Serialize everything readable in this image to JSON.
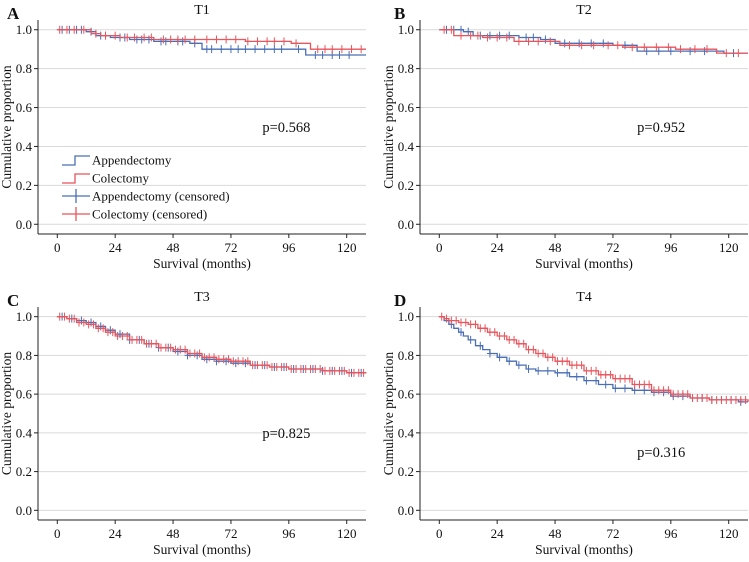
{
  "colors": {
    "appendectomy": "#4a6fb5",
    "colectomy": "#e8555c"
  },
  "legend": {
    "items": [
      {
        "label": "Appendectomy",
        "kind": "line",
        "series": "appendectomy"
      },
      {
        "label": "Colectomy",
        "kind": "line",
        "series": "colectomy"
      },
      {
        "label": "Appendectomy (censored)",
        "kind": "cross",
        "series": "appendectomy"
      },
      {
        "label": "Colectomy (censored)",
        "kind": "cross",
        "series": "colectomy"
      }
    ]
  },
  "chart_data": [
    {
      "type": "line",
      "letter": "A",
      "title": "T1",
      "xlabel": "Survival (months)",
      "ylabel": "Cumulative proportion",
      "xlim": [
        -8,
        128
      ],
      "ylim": [
        -0.05,
        1.05
      ],
      "xticks": [
        0,
        24,
        48,
        72,
        96,
        120
      ],
      "yticks": [
        0.0,
        0.2,
        0.4,
        0.6,
        0.8,
        1.0
      ],
      "ytick_labels": [
        "0.0",
        "0.2",
        "0.4",
        "0.6",
        "0.8",
        "1.0"
      ],
      "annotation": "p=0.568",
      "annotation_pos": [
        95,
        0.5
      ],
      "grid": true,
      "show_legend": true,
      "series": [
        {
          "name": "Appendectomy",
          "key": "appendectomy",
          "steps": [
            [
              0,
              1.0
            ],
            [
              12,
              0.99
            ],
            [
              16,
              0.97
            ],
            [
              22,
              0.96
            ],
            [
              30,
              0.95
            ],
            [
              40,
              0.94
            ],
            [
              55,
              0.93
            ],
            [
              60,
              0.9
            ],
            [
              103,
              0.87
            ],
            [
              128,
              0.87
            ]
          ],
          "censored": [
            2,
            5,
            8,
            10,
            14,
            18,
            20,
            26,
            28,
            33,
            35,
            38,
            43,
            45,
            50,
            52,
            57,
            62,
            64,
            68,
            72,
            75,
            78,
            82,
            86,
            90,
            93,
            100,
            107,
            110,
            114,
            117,
            121
          ]
        },
        {
          "name": "Colectomy",
          "key": "colectomy",
          "steps": [
            [
              0,
              1.0
            ],
            [
              14,
              0.98
            ],
            [
              18,
              0.97
            ],
            [
              26,
              0.96
            ],
            [
              40,
              0.95
            ],
            [
              60,
              0.95
            ],
            [
              78,
              0.94
            ],
            [
              97,
              0.93
            ],
            [
              105,
              0.9
            ],
            [
              128,
              0.9
            ]
          ],
          "censored": [
            1,
            4,
            7,
            11,
            16,
            20,
            24,
            29,
            32,
            36,
            39,
            44,
            47,
            50,
            53,
            57,
            62,
            66,
            70,
            74,
            79,
            83,
            87,
            90,
            94,
            99,
            108,
            111,
            114,
            118,
            122,
            126
          ]
        }
      ]
    },
    {
      "type": "line",
      "letter": "B",
      "title": "T2",
      "xlabel": "Survival (months)",
      "ylabel": "Cumulative proportion",
      "xlim": [
        -8,
        128
      ],
      "ylim": [
        -0.05,
        1.05
      ],
      "xticks": [
        0,
        24,
        48,
        72,
        96,
        120
      ],
      "yticks": [
        0.0,
        0.2,
        0.4,
        0.6,
        0.8,
        1.0
      ],
      "ytick_labels": [
        "0.0",
        "0.2",
        "0.4",
        "0.6",
        "0.8",
        "1.0"
      ],
      "annotation": "p=0.952",
      "annotation_pos": [
        92,
        0.5
      ],
      "grid": true,
      "show_legend": false,
      "series": [
        {
          "name": "Appendectomy",
          "key": "appendectomy",
          "steps": [
            [
              0,
              1.0
            ],
            [
              10,
              0.99
            ],
            [
              14,
              0.97
            ],
            [
              33,
              0.96
            ],
            [
              42,
              0.95
            ],
            [
              48,
              0.93
            ],
            [
              72,
              0.92
            ],
            [
              82,
              0.89
            ],
            [
              98,
              0.89
            ],
            [
              118,
              0.88
            ],
            [
              128,
              0.88
            ]
          ],
          "censored": [
            3,
            6,
            9,
            12,
            17,
            21,
            25,
            29,
            36,
            39,
            44,
            52,
            58,
            63,
            68,
            77,
            86,
            91,
            96,
            104,
            110,
            122
          ]
        },
        {
          "name": "Colectomy",
          "key": "colectomy",
          "steps": [
            [
              0,
              1.0
            ],
            [
              6,
              0.97
            ],
            [
              18,
              0.96
            ],
            [
              31,
              0.94
            ],
            [
              50,
              0.92
            ],
            [
              76,
              0.91
            ],
            [
              98,
              0.9
            ],
            [
              115,
              0.88
            ],
            [
              128,
              0.88
            ]
          ],
          "censored": [
            2,
            5,
            9,
            13,
            16,
            20,
            24,
            28,
            33,
            37,
            41,
            46,
            54,
            59,
            64,
            70,
            74,
            80,
            85,
            90,
            95,
            100,
            106,
            111,
            119,
            124
          ]
        }
      ]
    },
    {
      "type": "line",
      "letter": "C",
      "title": "T3",
      "xlabel": "Survival (months)",
      "ylabel": "Cumulative proportion",
      "xlim": [
        -8,
        128
      ],
      "ylim": [
        -0.05,
        1.05
      ],
      "xticks": [
        0,
        24,
        48,
        72,
        96,
        120
      ],
      "yticks": [
        0.0,
        0.2,
        0.4,
        0.6,
        0.8,
        1.0
      ],
      "ytick_labels": [
        "0.0",
        "0.2",
        "0.4",
        "0.6",
        "0.8",
        "1.0"
      ],
      "annotation": "p=0.825",
      "annotation_pos": [
        95,
        0.4
      ],
      "grid": true,
      "show_legend": false,
      "series": [
        {
          "name": "Appendectomy",
          "key": "appendectomy",
          "steps": [
            [
              0,
              1.0
            ],
            [
              4,
              0.99
            ],
            [
              8,
              0.98
            ],
            [
              12,
              0.97
            ],
            [
              16,
              0.95
            ],
            [
              20,
              0.93
            ],
            [
              24,
              0.91
            ],
            [
              30,
              0.88
            ],
            [
              36,
              0.86
            ],
            [
              42,
              0.84
            ],
            [
              48,
              0.82
            ],
            [
              54,
              0.8
            ],
            [
              60,
              0.78
            ],
            [
              66,
              0.77
            ],
            [
              72,
              0.76
            ],
            [
              80,
              0.75
            ],
            [
              88,
              0.74
            ],
            [
              96,
              0.73
            ],
            [
              110,
              0.72
            ],
            [
              120,
              0.71
            ],
            [
              128,
              0.71
            ]
          ],
          "censored": [
            2,
            6,
            10,
            14,
            18,
            22,
            26,
            30,
            34,
            38,
            42,
            46,
            50,
            54,
            58,
            62,
            66,
            70,
            74,
            78,
            82,
            86,
            90,
            94,
            98,
            102,
            106,
            110,
            114,
            118,
            122,
            126
          ]
        },
        {
          "name": "Colectomy",
          "key": "colectomy",
          "steps": [
            [
              0,
              1.0
            ],
            [
              4,
              0.99
            ],
            [
              8,
              0.97
            ],
            [
              12,
              0.96
            ],
            [
              16,
              0.94
            ],
            [
              20,
              0.92
            ],
            [
              24,
              0.9
            ],
            [
              30,
              0.88
            ],
            [
              36,
              0.86
            ],
            [
              42,
              0.84
            ],
            [
              48,
              0.83
            ],
            [
              54,
              0.81
            ],
            [
              60,
              0.79
            ],
            [
              66,
              0.78
            ],
            [
              72,
              0.77
            ],
            [
              80,
              0.75
            ],
            [
              88,
              0.74
            ],
            [
              96,
              0.73
            ],
            [
              110,
              0.72
            ],
            [
              120,
              0.71
            ],
            [
              128,
              0.71
            ]
          ],
          "censored": [
            1,
            3,
            5,
            7,
            9,
            11,
            13,
            15,
            17,
            19,
            21,
            23,
            25,
            27,
            29,
            31,
            33,
            35,
            37,
            39,
            41,
            43,
            45,
            47,
            49,
            51,
            53,
            55,
            57,
            59,
            61,
            63,
            65,
            67,
            69,
            71,
            73,
            75,
            77,
            79,
            81,
            83,
            85,
            87,
            89,
            91,
            93,
            95,
            97,
            99,
            101,
            103,
            105,
            107,
            109,
            111,
            113,
            115,
            117,
            119,
            121,
            123,
            125,
            127
          ]
        }
      ]
    },
    {
      "type": "line",
      "letter": "D",
      "title": "T4",
      "xlabel": "Survival (months)",
      "ylabel": "Cumulative proportion",
      "xlim": [
        -8,
        128
      ],
      "ylim": [
        -0.05,
        1.05
      ],
      "xticks": [
        0,
        24,
        48,
        72,
        96,
        120
      ],
      "yticks": [
        0.0,
        0.2,
        0.4,
        0.6,
        0.8,
        1.0
      ],
      "ytick_labels": [
        "0.0",
        "0.2",
        "0.4",
        "0.6",
        "0.8",
        "1.0"
      ],
      "annotation": "p=0.316",
      "annotation_pos": [
        92,
        0.3
      ],
      "grid": true,
      "show_legend": false,
      "series": [
        {
          "name": "Appendectomy",
          "key": "appendectomy",
          "steps": [
            [
              0,
              1.0
            ],
            [
              2,
              0.98
            ],
            [
              4,
              0.96
            ],
            [
              6,
              0.94
            ],
            [
              8,
              0.92
            ],
            [
              10,
              0.9
            ],
            [
              12,
              0.88
            ],
            [
              15,
              0.85
            ],
            [
              18,
              0.83
            ],
            [
              21,
              0.81
            ],
            [
              24,
              0.79
            ],
            [
              28,
              0.77
            ],
            [
              32,
              0.75
            ],
            [
              36,
              0.73
            ],
            [
              40,
              0.72
            ],
            [
              48,
              0.71
            ],
            [
              54,
              0.69
            ],
            [
              60,
              0.67
            ],
            [
              66,
              0.65
            ],
            [
              72,
              0.63
            ],
            [
              80,
              0.62
            ],
            [
              88,
              0.61
            ],
            [
              96,
              0.59
            ],
            [
              104,
              0.58
            ],
            [
              112,
              0.57
            ],
            [
              120,
              0.57
            ],
            [
              124,
              0.56
            ],
            [
              128,
              0.56
            ]
          ],
          "censored": [
            5,
            9,
            13,
            17,
            21,
            25,
            29,
            33,
            37,
            41,
            45,
            49,
            53,
            57,
            61,
            65,
            69,
            73,
            77,
            81,
            85,
            89,
            93,
            97,
            101,
            105,
            109,
            113,
            117,
            121,
            125
          ]
        },
        {
          "name": "Colectomy",
          "key": "colectomy",
          "steps": [
            [
              0,
              1.0
            ],
            [
              2,
              0.99
            ],
            [
              4,
              0.98
            ],
            [
              8,
              0.97
            ],
            [
              12,
              0.96
            ],
            [
              16,
              0.94
            ],
            [
              20,
              0.92
            ],
            [
              24,
              0.9
            ],
            [
              28,
              0.88
            ],
            [
              32,
              0.86
            ],
            [
              36,
              0.83
            ],
            [
              40,
              0.81
            ],
            [
              44,
              0.79
            ],
            [
              48,
              0.77
            ],
            [
              54,
              0.75
            ],
            [
              60,
              0.72
            ],
            [
              66,
              0.7
            ],
            [
              72,
              0.68
            ],
            [
              80,
              0.65
            ],
            [
              88,
              0.62
            ],
            [
              96,
              0.6
            ],
            [
              104,
              0.58
            ],
            [
              112,
              0.57
            ],
            [
              120,
              0.57
            ],
            [
              128,
              0.56
            ]
          ],
          "censored": [
            1,
            3,
            5,
            7,
            9,
            11,
            13,
            15,
            17,
            19,
            21,
            23,
            25,
            27,
            29,
            31,
            33,
            35,
            37,
            39,
            41,
            43,
            45,
            47,
            49,
            51,
            53,
            55,
            57,
            59,
            61,
            63,
            65,
            67,
            69,
            71,
            73,
            75,
            77,
            79,
            81,
            83,
            85,
            87,
            89,
            91,
            93,
            95,
            97,
            99,
            101,
            103,
            105,
            107,
            109,
            111,
            113,
            115,
            117,
            119,
            121,
            123,
            125,
            127
          ]
        }
      ]
    }
  ]
}
